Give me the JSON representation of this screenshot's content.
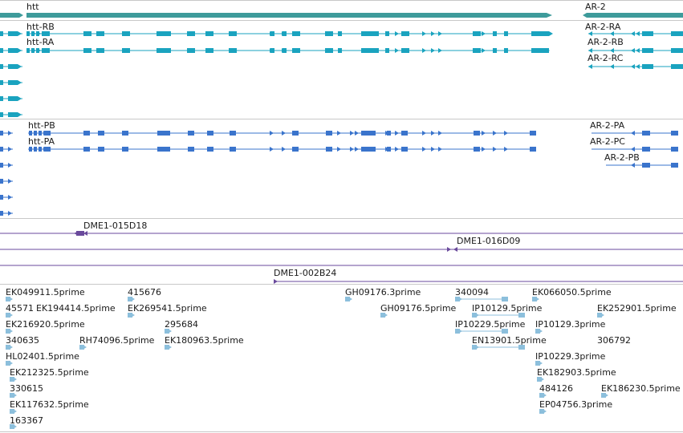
{
  "colors": {
    "gene": "#3e9b9b",
    "transcript_teal": "#1aa3bf",
    "transcript_blue": "#3a74cc",
    "clone": "#6a4a9c",
    "est": "#8cbfdc",
    "separator": "#c8c8c8"
  },
  "genes": [
    {
      "label": "htt"
    },
    {
      "label": "AR-2"
    }
  ],
  "transcripts_rna": [
    {
      "label": "htt-RB"
    },
    {
      "label": "htt-RA"
    },
    {
      "label": "AR-2-RA"
    },
    {
      "label": "AR-2-RB"
    },
    {
      "label": "AR-2-RC"
    }
  ],
  "transcripts_protein": [
    {
      "label": "htt-PB"
    },
    {
      "label": "htt-PA"
    },
    {
      "label": "AR-2-PA"
    },
    {
      "label": "AR-2-PC"
    },
    {
      "label": "AR-2-PB"
    }
  ],
  "clones": [
    {
      "label": "DME1-015D18"
    },
    {
      "label": "DME1-016D09"
    },
    {
      "label": "DME1-002B24"
    }
  ],
  "ests": [
    {
      "label": "EK049911.5prime"
    },
    {
      "label": "415676"
    },
    {
      "label": "GH09176.3prime"
    },
    {
      "label": "340094"
    },
    {
      "label": "EK066050.5prime"
    },
    {
      "label": "45571"
    },
    {
      "label": "EK194414.5prime"
    },
    {
      "label": "EK269541.5prime"
    },
    {
      "label": "GH09176.5prime"
    },
    {
      "label": "IP10129.5prime"
    },
    {
      "label": "EK252901.5prime"
    },
    {
      "label": "EK216920.5prime"
    },
    {
      "label": "295684"
    },
    {
      "label": "IP10229.5prime"
    },
    {
      "label": "IP10129.3prime"
    },
    {
      "label": "340635"
    },
    {
      "label": "RH74096.5prime"
    },
    {
      "label": "EK180963.5prime"
    },
    {
      "label": "EN13901.5prime"
    },
    {
      "label": "306792"
    },
    {
      "label": "HL02401.5prime"
    },
    {
      "label": "IP10229.3prime"
    },
    {
      "label": "EK212325.5prime"
    },
    {
      "label": "EK182903.5prime"
    },
    {
      "label": "330615"
    },
    {
      "label": "484126"
    },
    {
      "label": "EK186230.5prime"
    },
    {
      "label": "EK117632.5prime"
    },
    {
      "label": "EP04756.3prime"
    },
    {
      "label": "163367"
    }
  ]
}
